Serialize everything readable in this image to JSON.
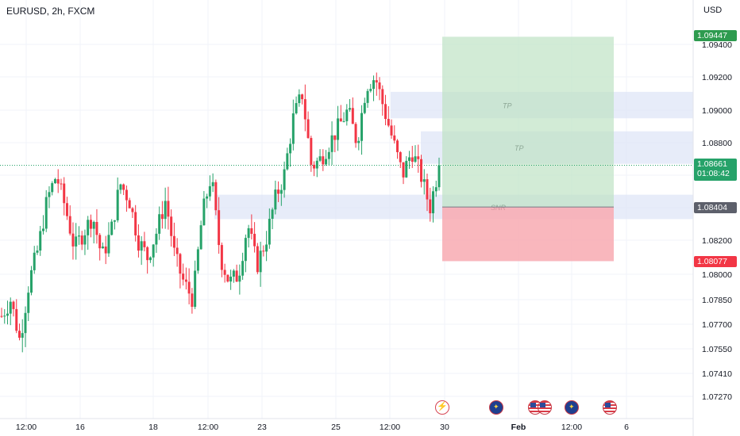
{
  "header": {
    "symbol": "EURUSD, 2h, FXCM",
    "currency": "USD"
  },
  "price_tags": {
    "tp": "1.09447",
    "last": "1.08661",
    "countdown": "01:08:42",
    "snr": "1.08404",
    "sl": "1.08077"
  },
  "annotations": {
    "tp1": "TP",
    "tp2": "TP",
    "snr": "SNR"
  },
  "events": [
    "flash-event-icon",
    "eu-flag-icon",
    "us-flag-icon",
    "us-flag-icon",
    "eu-flag-icon",
    "us-flag-icon"
  ],
  "colors": {
    "up": "#26a269",
    "down": "#f23645",
    "grid": "#f0f3fa",
    "zone": "#dfe5f7",
    "profit": "#bfe3c5",
    "loss": "#f8aab2"
  },
  "chart_data": {
    "type": "candlestick",
    "title": "EURUSD, 2h, FXCM",
    "y_ticks": [
      1.0727,
      1.0741,
      1.0755,
      1.077,
      1.0785,
      1.08,
      1.082,
      1.084,
      1.086,
      1.088,
      1.09,
      1.092,
      1.094
    ],
    "x_ticks": [
      "12:00",
      "16",
      "18",
      "12:00",
      "23",
      "25",
      "12:00",
      "30",
      "Feb",
      "12:00",
      "6"
    ],
    "last_price": 1.08661,
    "position": {
      "entry": 1.08404,
      "take_profit": 1.09447,
      "stop_loss": 1.08077
    },
    "zones": [
      {
        "label": "TP",
        "low": 1.0895,
        "high": 1.0911
      },
      {
        "label": "TP",
        "low": 1.0867,
        "high": 1.0887
      },
      {
        "label": "SNR",
        "low": 1.0833,
        "high": 1.0848
      }
    ],
    "price_path": [
      1.0775,
      1.0785,
      1.076,
      1.0795,
      1.0815,
      1.0845,
      1.086,
      1.084,
      1.0815,
      1.0825,
      1.0835,
      1.081,
      1.0825,
      1.0855,
      1.0845,
      1.082,
      1.081,
      1.0825,
      1.0845,
      1.081,
      1.0795,
      1.0785,
      1.0835,
      1.086,
      1.081,
      1.0795,
      1.08,
      1.083,
      1.0805,
      1.082,
      1.0845,
      1.086,
      1.0895,
      1.091,
      1.0865,
      1.087,
      1.088,
      1.089,
      1.09,
      1.088,
      1.0915,
      1.092,
      1.09,
      1.088,
      1.086,
      1.0875,
      1.086,
      1.084,
      1.0866
    ],
    "grid": true
  }
}
